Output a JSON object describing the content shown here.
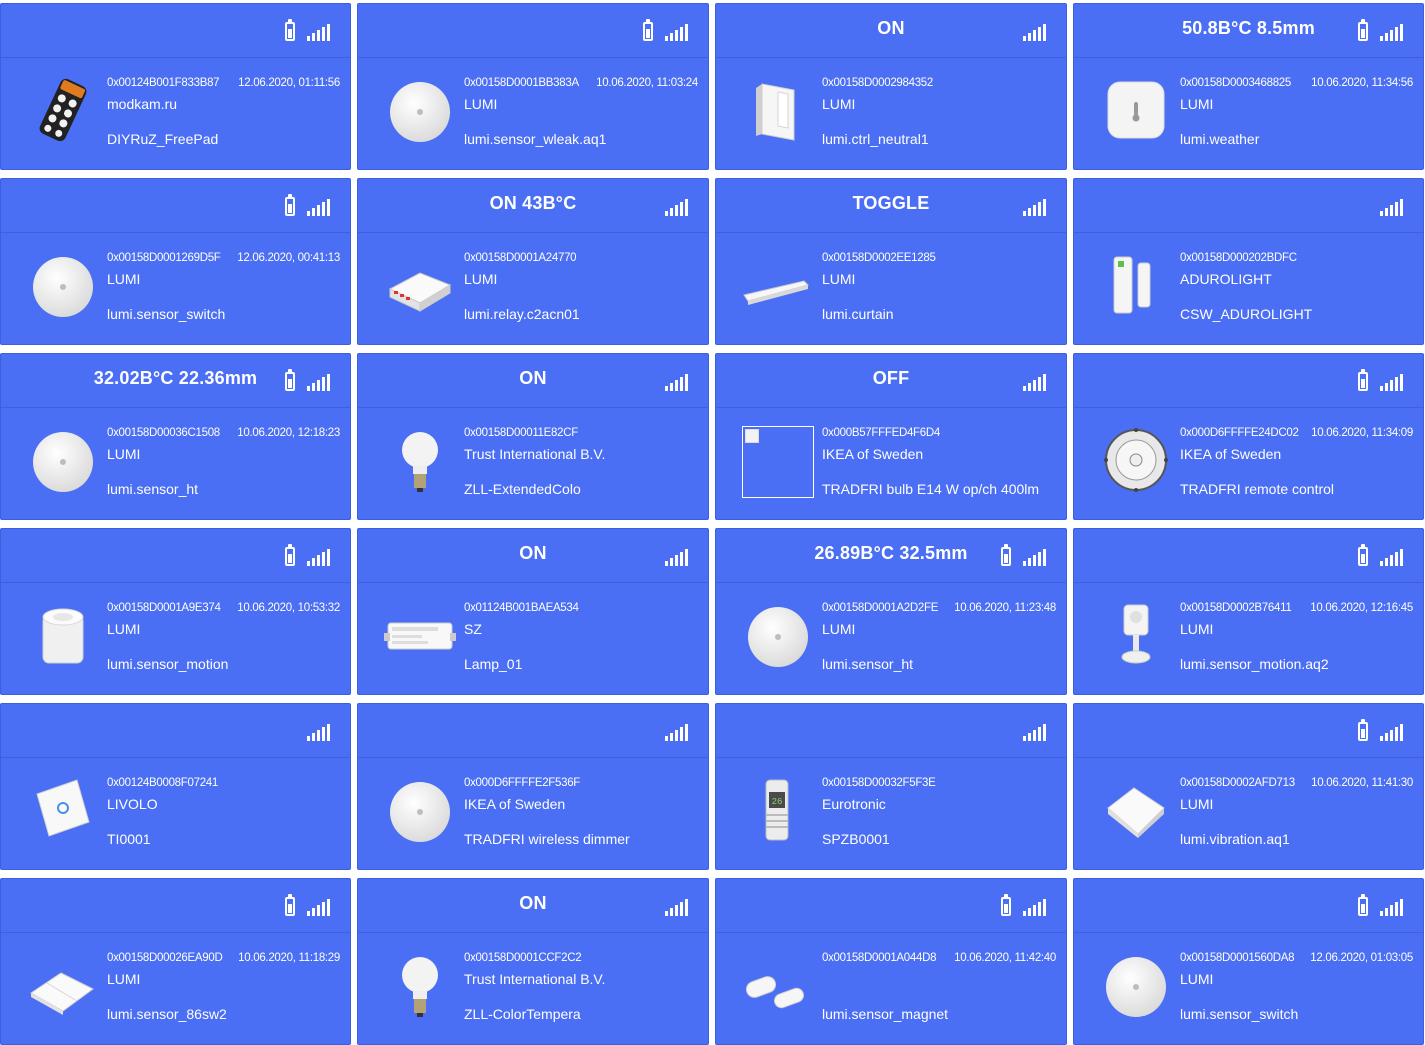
{
  "devices": [
    {
      "state": "",
      "battery": true,
      "ieee": "0x00124B001F833B87",
      "ts": "12.06.2020, 01:11:56",
      "manuf": "modkam.ru",
      "model": "DIYRuZ_FreePad",
      "img": "keypad"
    },
    {
      "state": "",
      "battery": true,
      "ieee": "0x00158D0001BB383A",
      "ts": "10.06.2020, 11:03:24",
      "manuf": "LUMI",
      "model": "lumi.sensor_wleak.aq1",
      "img": "round"
    },
    {
      "state": "ON",
      "battery": false,
      "ieee": "0x00158D0002984352",
      "ts": "",
      "manuf": "LUMI",
      "model": "lumi.ctrl_neutral1",
      "img": "wallswitch"
    },
    {
      "state": "50.8В°C 8.5mm",
      "battery": true,
      "ieee": "0x00158D0003468825",
      "ts": "10.06.2020, 11:34:56",
      "manuf": "LUMI",
      "model": "lumi.weather",
      "img": "square"
    },
    {
      "state": "",
      "battery": true,
      "ieee": "0x00158D0001269D5F",
      "ts": "12.06.2020, 00:41:13",
      "manuf": "LUMI",
      "model": "lumi.sensor_switch",
      "img": "round"
    },
    {
      "state": "ON 43В°C",
      "battery": false,
      "ieee": "0x00158D0001A24770",
      "ts": "",
      "manuf": "LUMI",
      "model": "lumi.relay.c2acn01",
      "img": "relay"
    },
    {
      "state": "TOGGLE",
      "battery": false,
      "ieee": "0x00158D0002EE1285",
      "ts": "",
      "manuf": "LUMI",
      "model": "lumi.curtain",
      "img": "curtain"
    },
    {
      "state": "",
      "battery": false,
      "ieee": "0x00158D000202BDFC",
      "ts": "",
      "manuf": "ADUROLIGHT",
      "model": "CSW_ADUROLIGHT",
      "img": "doorsensor"
    },
    {
      "state": "32.02В°C 22.36mm",
      "battery": true,
      "ieee": "0x00158D00036C1508",
      "ts": "10.06.2020, 12:18:23",
      "manuf": "LUMI",
      "model": "lumi.sensor_ht",
      "img": "round"
    },
    {
      "state": "ON",
      "battery": false,
      "ieee": "0x00158D00011E82CF",
      "ts": "",
      "manuf": "Trust International B.V.",
      "model": "ZLL-ExtendedColo",
      "img": "bulb"
    },
    {
      "state": "OFF",
      "battery": false,
      "ieee": "0x000B57FFFED4F6D4",
      "ts": "",
      "manuf": "IKEA of Sweden",
      "model": "TRADFRI bulb E14 W op/ch 400lm",
      "img": "broken"
    },
    {
      "state": "",
      "battery": true,
      "ieee": "0x000D6FFFFE24DC02",
      "ts": "10.06.2020, 11:34:09",
      "manuf": "IKEA of Sweden",
      "model": "TRADFRI remote control",
      "img": "remote"
    },
    {
      "state": "",
      "battery": true,
      "ieee": "0x00158D0001A9E374",
      "ts": "10.06.2020, 10:53:32",
      "manuf": "LUMI",
      "model": "lumi.sensor_motion",
      "img": "motion"
    },
    {
      "state": "ON",
      "battery": false,
      "ieee": "0x01124B001BAEA534",
      "ts": "",
      "manuf": "SZ",
      "model": "Lamp_01",
      "img": "controller"
    },
    {
      "state": "26.89В°C 32.5mm",
      "battery": true,
      "ieee": "0x00158D0001A2D2FE",
      "ts": "10.06.2020, 11:23:48",
      "manuf": "LUMI",
      "model": "lumi.sensor_ht",
      "img": "round"
    },
    {
      "state": "",
      "battery": true,
      "ieee": "0x00158D0002B76411",
      "ts": "10.06.2020, 12:16:45",
      "manuf": "LUMI",
      "model": "lumi.sensor_motion.aq2",
      "img": "motion2"
    },
    {
      "state": "",
      "battery": false,
      "ieee": "0x00124B0008F07241",
      "ts": "",
      "manuf": "LIVOLO",
      "model": "TI0001",
      "img": "glassswitch"
    },
    {
      "state": "",
      "battery": false,
      "ieee": "0x000D6FFFFE2F536F",
      "ts": "",
      "manuf": "IKEA of Sweden",
      "model": "TRADFRI wireless dimmer",
      "img": "round"
    },
    {
      "state": "",
      "battery": false,
      "ieee": "0x00158D00032F5F3E",
      "ts": "",
      "manuf": "Eurotronic",
      "model": "SPZB0001",
      "img": "thermostat"
    },
    {
      "state": "",
      "battery": true,
      "ieee": "0x00158D0002AFD713",
      "ts": "10.06.2020, 11:41:30",
      "manuf": "LUMI",
      "model": "lumi.vibration.aq1",
      "img": "vibration"
    },
    {
      "state": "",
      "battery": true,
      "ieee": "0x00158D00026EA90D",
      "ts": "10.06.2020, 11:18:29",
      "manuf": "LUMI",
      "model": "lumi.sensor_86sw2",
      "img": "flatswitch"
    },
    {
      "state": "ON",
      "battery": false,
      "ieee": "0x00158D0001CCF2C2",
      "ts": "",
      "manuf": "Trust International B.V.",
      "model": "ZLL-ColorTempera",
      "img": "bulb"
    },
    {
      "state": "",
      "battery": true,
      "ieee": "0x00158D0001A044D8",
      "ts": "10.06.2020, 11:42:40",
      "manuf": "",
      "model": "lumi.sensor_magnet",
      "img": "magnet"
    },
    {
      "state": "",
      "battery": true,
      "ieee": "0x00158D0001560DA8",
      "ts": "12.06.2020, 01:03:05",
      "manuf": "LUMI",
      "model": "lumi.sensor_switch",
      "img": "round"
    }
  ]
}
